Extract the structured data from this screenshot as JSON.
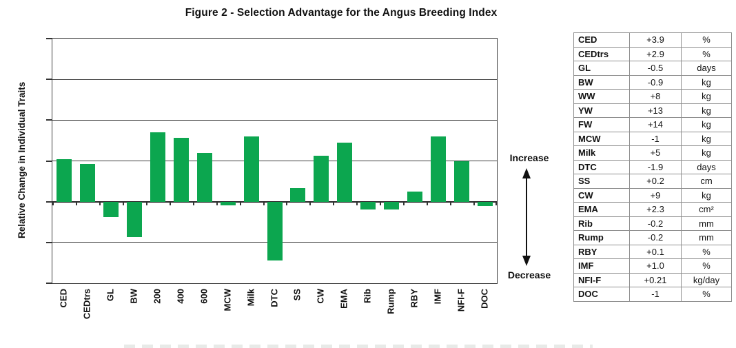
{
  "figure_title": "Figure 2 - Selection Advantage for the Angus Breeding Index",
  "chart_data": {
    "type": "bar",
    "title": "Figure 2 - Selection Advantage for the Angus Breeding Index",
    "ylabel": "Relative Change in Individual Traits",
    "xlabel": "",
    "categories": [
      "CED",
      "CEDtrs",
      "GL",
      "BW",
      "200",
      "400",
      "600",
      "MCW",
      "Milk",
      "DTC",
      "SS",
      "CW",
      "EMA",
      "Rib",
      "Rump",
      "RBY",
      "IMF",
      "NFI-F",
      "DOC"
    ],
    "values": [
      1.04,
      0.93,
      -0.37,
      -0.87,
      1.7,
      1.57,
      1.2,
      -0.09,
      1.6,
      -1.45,
      0.33,
      1.13,
      1.45,
      -0.2,
      -0.19,
      0.25,
      1.6,
      1.0,
      -0.1
    ],
    "ylim": [
      -2,
      4
    ],
    "grid": true,
    "grid_interval": 1,
    "legend_position": "none",
    "bar_color": "#0ca64f",
    "annotations": {
      "increase_label": "Increase",
      "decrease_label": "Decrease"
    }
  },
  "table": {
    "rows": [
      [
        "CED",
        "+3.9",
        "%"
      ],
      [
        "CEDtrs",
        "+2.9",
        "%"
      ],
      [
        "GL",
        "-0.5",
        "days"
      ],
      [
        "BW",
        "-0.9",
        "kg"
      ],
      [
        "WW",
        "+8",
        "kg"
      ],
      [
        "YW",
        "+13",
        "kg"
      ],
      [
        "FW",
        "+14",
        "kg"
      ],
      [
        "MCW",
        "-1",
        "kg"
      ],
      [
        "Milk",
        "+5",
        "kg"
      ],
      [
        "DTC",
        "-1.9",
        "days"
      ],
      [
        "SS",
        "+0.2",
        "cm"
      ],
      [
        "CW",
        "+9",
        "kg"
      ],
      [
        "EMA",
        "+2.3",
        "cm²"
      ],
      [
        "Rib",
        "-0.2",
        "mm"
      ],
      [
        "Rump",
        "-0.2",
        "mm"
      ],
      [
        "RBY",
        "+0.1",
        "%"
      ],
      [
        "IMF",
        "+1.0",
        "%"
      ],
      [
        "NFI-F",
        "+0.21",
        "kg/day"
      ],
      [
        "DOC",
        "-1",
        "%"
      ]
    ]
  }
}
